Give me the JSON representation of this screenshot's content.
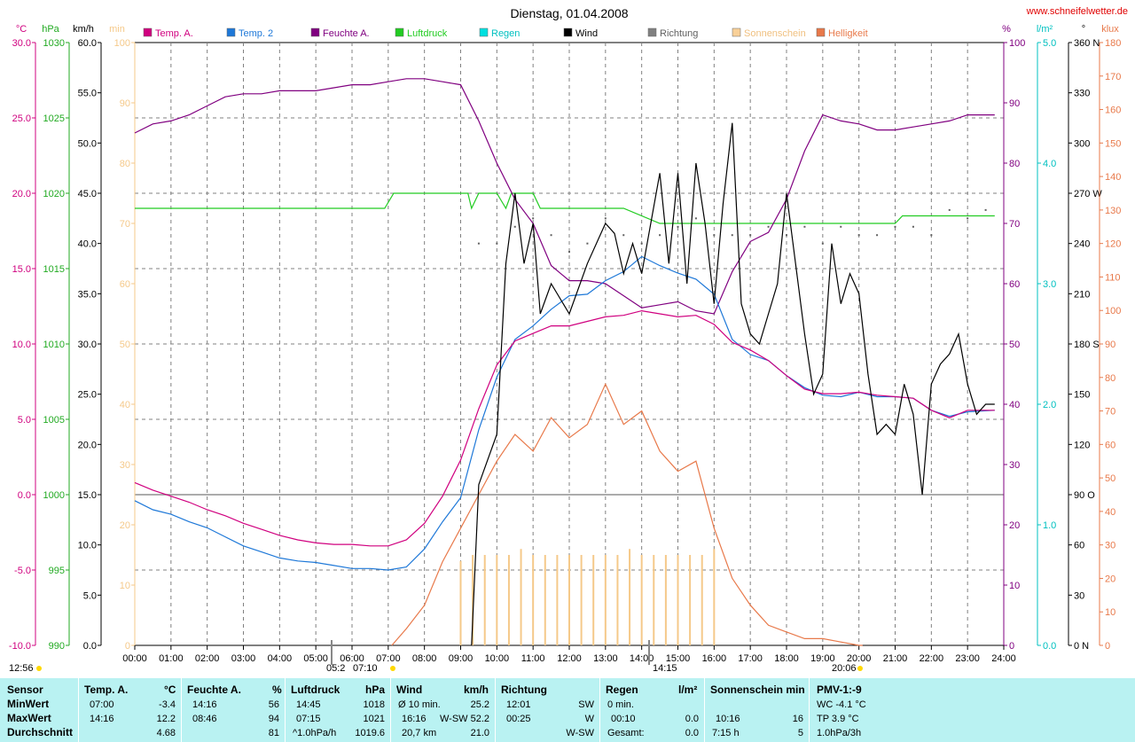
{
  "title": "Dienstag, 01.04.2008",
  "site": "www.schneifelwetter.de",
  "colors": {
    "temp_a": "#d0007f",
    "temp_2": "#1e78d8",
    "feuchte": "#800080",
    "luftdruck": "#22cc22",
    "regen": "#00c8c8",
    "wind": "#000000",
    "richtung": "#606060",
    "sonne": "#f5c98a",
    "helligkeit": "#e8794a"
  },
  "legend": [
    {
      "label": "Temp. A.",
      "color": "#d0007f"
    },
    {
      "label": "Temp. 2",
      "color": "#1e78d8"
    },
    {
      "label": "Feuchte A.",
      "color": "#800080"
    },
    {
      "label": "Luftdruck",
      "color": "#22cc22"
    },
    {
      "label": "Regen",
      "color": "#00e0e0"
    },
    {
      "label": "Wind",
      "color": "#000000"
    },
    {
      "label": "Richtung",
      "color": "#808080"
    },
    {
      "label": "Sonnenschein",
      "color": "#f8d098"
    },
    {
      "label": "Helligkeit",
      "color": "#e8794a"
    }
  ],
  "units_left": [
    "°C",
    "hPa",
    "km/h",
    "min"
  ],
  "units_right": [
    "%",
    "l/m²",
    "°",
    "klux"
  ],
  "sun_labels": {
    "sunrise": "05:2",
    "sunrise2": "07:10",
    "noon": "14:15",
    "sunset": "20:06",
    "left_time": "12:56"
  },
  "chart_data": {
    "type": "line",
    "x_ticks": [
      "00:00",
      "01:00",
      "02:00",
      "03:00",
      "04:00",
      "05:00",
      "06:00",
      "07:00",
      "08:00",
      "09:00",
      "10:00",
      "11:00",
      "12:00",
      "13:00",
      "14:00",
      "15:00",
      "16:00",
      "17:00",
      "18:00",
      "19:00",
      "20:00",
      "21:00",
      "22:00",
      "23:00",
      "24:00"
    ],
    "axes": {
      "temp": {
        "range": [
          -10,
          30
        ],
        "ticks": [
          "-10.0",
          "-5.0",
          "0.0",
          "5.0",
          "10.0",
          "15.0",
          "20.0",
          "25.0",
          "30.0"
        ]
      },
      "hpa": {
        "range": [
          990,
          1030
        ],
        "ticks": [
          "990",
          "995",
          "1000",
          "1005",
          "1010",
          "1015",
          "1020",
          "1025",
          "1030"
        ]
      },
      "kmh": {
        "range": [
          0,
          60
        ],
        "ticks": [
          "0.0",
          "5.0",
          "10.0",
          "15.0",
          "20.0",
          "25.0",
          "30.0",
          "35.0",
          "40.0",
          "45.0",
          "50.0",
          "55.0",
          "60.0"
        ]
      },
      "min": {
        "range": [
          0,
          100
        ],
        "ticks": [
          "0",
          "10",
          "20",
          "30",
          "40",
          "50",
          "60",
          "70",
          "80",
          "90",
          "100"
        ]
      },
      "pct": {
        "range": [
          0,
          100
        ],
        "ticks": [
          "0",
          "10",
          "20",
          "30",
          "40",
          "50",
          "60",
          "70",
          "80",
          "90",
          "100"
        ]
      },
      "rain": {
        "range": [
          0,
          5
        ],
        "ticks": [
          "0.0",
          "1.0",
          "2.0",
          "3.0",
          "4.0",
          "5.0"
        ]
      },
      "dir": {
        "range": [
          0,
          360
        ],
        "ticks": [
          "0",
          "30",
          "60",
          "90",
          "120",
          "150",
          "180",
          "210",
          "240",
          "270",
          "300",
          "330",
          "360"
        ],
        "letters": {
          "0": "N",
          "90": "O",
          "180": "S",
          "270": "W",
          "360": "N"
        }
      },
      "klux": {
        "range": [
          0,
          180
        ],
        "ticks": [
          "0",
          "10",
          "20",
          "30",
          "40",
          "50",
          "60",
          "70",
          "80",
          "90",
          "100",
          "110",
          "120",
          "130",
          "140",
          "150",
          "160",
          "170",
          "180"
        ]
      }
    },
    "series": [
      {
        "name": "Temp. A.",
        "axis": "temp",
        "x": [
          0,
          0.5,
          1,
          1.5,
          2,
          2.5,
          3,
          3.5,
          4,
          4.5,
          5,
          5.5,
          6,
          6.5,
          7,
          7.5,
          8,
          8.5,
          9,
          9.5,
          10,
          10.5,
          11,
          11.5,
          12,
          12.5,
          13,
          13.5,
          14,
          14.5,
          15,
          15.5,
          16,
          16.5,
          17,
          17.5,
          18,
          18.5,
          19,
          19.5,
          20,
          20.5,
          21,
          21.5,
          22,
          22.5,
          23,
          23.75
        ],
        "y": [
          0.8,
          0.3,
          -0.1,
          -0.5,
          -1.0,
          -1.4,
          -1.9,
          -2.3,
          -2.7,
          -3.0,
          -3.2,
          -3.3,
          -3.3,
          -3.4,
          -3.4,
          -3.0,
          -1.9,
          -0.1,
          2.3,
          5.7,
          8.6,
          10.2,
          10.7,
          11.2,
          11.2,
          11.5,
          11.8,
          11.9,
          12.2,
          12.0,
          11.8,
          11.9,
          11.3,
          10.1,
          9.6,
          8.9,
          7.9,
          7.0,
          6.7,
          6.7,
          6.8,
          6.6,
          6.5,
          6.4,
          5.6,
          5.1,
          5.6,
          5.6
        ]
      },
      {
        "name": "Temp. 2",
        "axis": "temp",
        "x": [
          0,
          0.5,
          1,
          1.5,
          2,
          2.5,
          3,
          3.5,
          4,
          4.5,
          5,
          5.5,
          6,
          6.5,
          7,
          7.5,
          8,
          8.5,
          9,
          9.5,
          10,
          10.5,
          11,
          11.5,
          12,
          12.5,
          13,
          13.5,
          14,
          14.5,
          15,
          15.5,
          16,
          16.5,
          17,
          17.5,
          18,
          18.5,
          19,
          19.5,
          20,
          20.5,
          21,
          21.5,
          22,
          22.5,
          23,
          23.75
        ],
        "y": [
          -0.4,
          -1.0,
          -1.3,
          -1.8,
          -2.2,
          -2.8,
          -3.4,
          -3.8,
          -4.2,
          -4.4,
          -4.5,
          -4.7,
          -4.9,
          -4.9,
          -5.0,
          -4.8,
          -3.6,
          -1.8,
          -0.2,
          4.3,
          7.8,
          10.3,
          11.2,
          12.3,
          13.2,
          13.3,
          14.2,
          14.8,
          15.8,
          15.2,
          14.7,
          14.3,
          13.3,
          10.3,
          9.3,
          8.9,
          7.9,
          7.1,
          6.6,
          6.5,
          6.8,
          6.5,
          6.5,
          6.4,
          5.6,
          5.2,
          5.5,
          5.6
        ]
      },
      {
        "name": "Feuchte A.",
        "axis": "pct",
        "x": [
          0,
          0.5,
          1,
          1.5,
          2,
          2.5,
          3,
          3.5,
          4,
          4.5,
          5,
          5.5,
          6,
          6.5,
          7,
          7.5,
          8,
          8.5,
          9,
          9.5,
          10,
          10.5,
          11,
          11.5,
          12,
          12.5,
          13,
          13.5,
          14,
          14.5,
          15,
          15.5,
          16,
          16.5,
          17,
          17.5,
          18,
          18.5,
          19,
          19.5,
          20,
          20.5,
          21,
          21.5,
          22,
          22.5,
          23,
          23.75
        ],
        "y": [
          85,
          86.5,
          87,
          88,
          89.5,
          91,
          91.5,
          91.5,
          92,
          92,
          92,
          92.5,
          93,
          93,
          93.5,
          94,
          94,
          93.5,
          93,
          87,
          80,
          74,
          70,
          63,
          60.5,
          60.5,
          60,
          58,
          56,
          56.5,
          57,
          55.5,
          55,
          62,
          67,
          68.5,
          74,
          82,
          88,
          87,
          86.5,
          85.5,
          85.5,
          86,
          86.5,
          87,
          88,
          88
        ]
      },
      {
        "name": "Luftdruck",
        "axis": "hpa",
        "x": [
          0,
          6.9,
          7.15,
          9.2,
          9.3,
          9.5,
          10.0,
          10.25,
          10.4,
          11.0,
          11.2,
          13.5,
          14.5,
          16.0,
          21.0,
          21.2,
          23.75
        ],
        "y": [
          1019,
          1019,
          1020,
          1020,
          1019,
          1020,
          1020,
          1019,
          1020,
          1020,
          1019,
          1019,
          1018,
          1018,
          1018,
          1018.5,
          1018.5
        ]
      },
      {
        "name": "Wind",
        "axis": "kmh",
        "x": [
          9.3,
          9.5,
          10,
          10.25,
          10.5,
          10.75,
          11,
          11.2,
          11.5,
          12,
          12.5,
          13,
          13.25,
          13.5,
          13.75,
          14,
          14.25,
          14.5,
          14.75,
          15,
          15.25,
          15.5,
          15.75,
          16,
          16.25,
          16.5,
          16.75,
          17,
          17.25,
          17.5,
          17.75,
          18,
          18.25,
          18.5,
          18.75,
          19,
          19.25,
          19.5,
          19.75,
          20,
          20.25,
          20.5,
          20.75,
          21,
          21.25,
          21.5,
          21.75,
          22,
          22.25,
          22.5,
          22.75,
          23,
          23.25,
          23.5,
          23.75
        ],
        "y": [
          0,
          16,
          21,
          38,
          45,
          38,
          42,
          33,
          36,
          33,
          38,
          42,
          41,
          37,
          40,
          37,
          42,
          47,
          38,
          47,
          36,
          48,
          42,
          34,
          44,
          52,
          34,
          31,
          30,
          33,
          36,
          45,
          38,
          31,
          25,
          27,
          40,
          34,
          37,
          35,
          27,
          21,
          22,
          21,
          26,
          23,
          15,
          26,
          28,
          29,
          31,
          26,
          23,
          24,
          24
        ]
      },
      {
        "name": "Helligkeit",
        "axis": "klux",
        "x": [
          7.1,
          7.5,
          8,
          8.5,
          9,
          9.5,
          10,
          10.5,
          11,
          11.5,
          12,
          12.5,
          13,
          13.5,
          14,
          14.5,
          15,
          15.5,
          16,
          16.5,
          17,
          17.5,
          18,
          18.5,
          19,
          19.5,
          20,
          20.1
        ],
        "y": [
          0,
          5,
          12,
          25,
          35,
          45,
          55,
          63,
          58,
          68,
          62,
          66,
          78,
          66,
          70,
          58,
          52,
          55,
          35,
          20,
          12,
          6,
          4,
          2,
          2,
          1,
          0,
          0
        ]
      }
    ],
    "sonnenschein_minutes": [
      {
        "t": "09:00",
        "v": 14
      },
      {
        "t": "09:20",
        "v": 15
      },
      {
        "t": "09:40",
        "v": 15
      },
      {
        "t": "10:00",
        "v": 15
      },
      {
        "t": "10:20",
        "v": 15
      },
      {
        "t": "10:40",
        "v": 16
      },
      {
        "t": "11:00",
        "v": 15
      },
      {
        "t": "11:20",
        "v": 15
      },
      {
        "t": "11:40",
        "v": 15
      },
      {
        "t": "12:00",
        "v": 15
      },
      {
        "t": "12:20",
        "v": 15
      },
      {
        "t": "12:40",
        "v": 15
      },
      {
        "t": "13:00",
        "v": 15
      },
      {
        "t": "13:20",
        "v": 15
      },
      {
        "t": "13:40",
        "v": 16
      },
      {
        "t": "14:00",
        "v": 15
      },
      {
        "t": "14:20",
        "v": 15
      },
      {
        "t": "14:40",
        "v": 15
      },
      {
        "t": "15:00",
        "v": 15
      },
      {
        "t": "15:20",
        "v": 15
      },
      {
        "t": "15:40",
        "v": 15
      },
      {
        "t": "16:00",
        "v": 16
      }
    ],
    "richtung_points": [
      {
        "x": 9.5,
        "y": 240
      },
      {
        "x": 10,
        "y": 240
      },
      {
        "x": 10.5,
        "y": 250
      },
      {
        "x": 11,
        "y": 255
      },
      {
        "x": 11.5,
        "y": 245
      },
      {
        "x": 12,
        "y": 235
      },
      {
        "x": 12.5,
        "y": 240
      },
      {
        "x": 13,
        "y": 255
      },
      {
        "x": 13.5,
        "y": 245
      },
      {
        "x": 14,
        "y": 240
      },
      {
        "x": 14.5,
        "y": 245
      },
      {
        "x": 15,
        "y": 250
      },
      {
        "x": 15.5,
        "y": 255
      },
      {
        "x": 16,
        "y": 245
      },
      {
        "x": 16.5,
        "y": 245
      },
      {
        "x": 17,
        "y": 245
      },
      {
        "x": 17.5,
        "y": 250
      },
      {
        "x": 18,
        "y": 245
      },
      {
        "x": 18.5,
        "y": 250
      },
      {
        "x": 19,
        "y": 240
      },
      {
        "x": 19.5,
        "y": 250
      },
      {
        "x": 20,
        "y": 245
      },
      {
        "x": 20.5,
        "y": 245
      },
      {
        "x": 21,
        "y": 250
      },
      {
        "x": 21.5,
        "y": 250
      },
      {
        "x": 22,
        "y": 245
      },
      {
        "x": 22.5,
        "y": 260
      },
      {
        "x": 23,
        "y": 255
      },
      {
        "x": 23.5,
        "y": 260
      }
    ]
  },
  "stats": {
    "rowlabels": [
      "Sensor",
      "MinWert",
      "MaxWert",
      "Durchschnitt"
    ],
    "temp": {
      "head": "Temp. A.",
      "unit": "°C",
      "min_t": "07:00",
      "min_v": "-3.4",
      "max_t": "14:16",
      "max_v": "12.2",
      "avg": "4.68"
    },
    "feuchte": {
      "head": "Feuchte A.",
      "unit": "%",
      "min_t": "14:16",
      "min_v": "56",
      "max_t": "08:46",
      "max_v": "94",
      "avg": "81"
    },
    "druck": {
      "head": "Luftdruck",
      "unit": "hPa",
      "min_t": "14:45",
      "min_v": "1018",
      "max_t": "07:15",
      "max_v": "1021",
      "trend": "^1.0hPa/h",
      "avg": "1019.6"
    },
    "wind": {
      "head": "Wind",
      "unit": "km/h",
      "r1a": "Ø 10 min.",
      "r1b": "25.2",
      "r2a": "16:16",
      "r2b": "W-SW 52.2",
      "r3a": "20,7 km",
      "r3b": "21.0"
    },
    "richtung": {
      "head": "Richtung",
      "r1a": "12:01",
      "r1b": "SW",
      "r2a": "00:25",
      "r2b": "W",
      "r3b": "W-SW"
    },
    "regen": {
      "head": "Regen",
      "unit": "l/m²",
      "r1": "0 min.",
      "r2a": "00:10",
      "r2b": "0.0",
      "r3a": "Gesamt:",
      "r3b": "0.0"
    },
    "sonne": {
      "head": "Sonnenschein min",
      "r2a": "10:16",
      "r2b": "16",
      "r3a": "7:15 h",
      "r3b": "5"
    },
    "pmv": {
      "head": "PMV-1:-9",
      "r1": "WC -4.1 °C",
      "r2": "TP 3.9 °C",
      "r3": "1.0hPa/3h"
    }
  }
}
